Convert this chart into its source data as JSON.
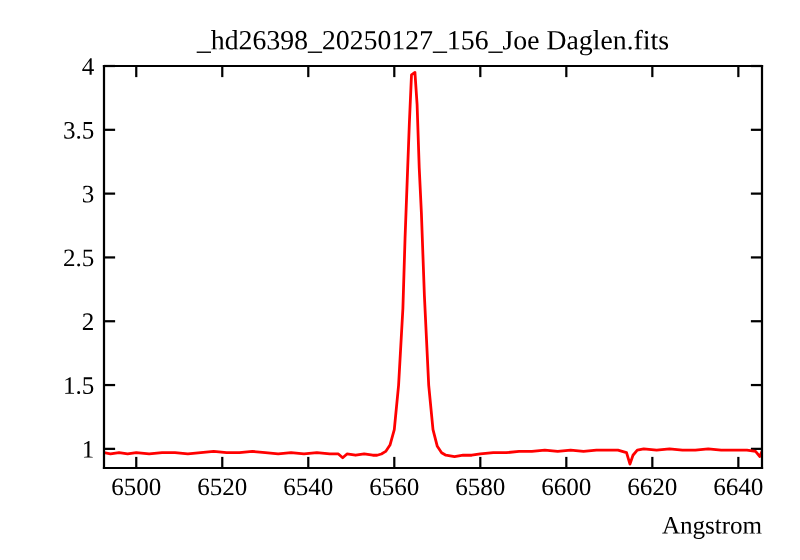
{
  "chart_data": {
    "type": "line",
    "title": "_hd26398_20250127_156_Joe Daglen.fits",
    "xlabel": "Angstrom",
    "xlim": [
      6492.5,
      6645.5
    ],
    "xticks": [
      6500,
      6520,
      6540,
      6560,
      6580,
      6600,
      6620,
      6640
    ],
    "ylim": [
      0.85,
      4
    ],
    "yticks": [
      1,
      1.5,
      2,
      2.5,
      3,
      3.5,
      4
    ],
    "grid": false,
    "legend": false,
    "series": [
      {
        "color": "#ff0000",
        "x": [
          6492.5,
          6494,
          6496,
          6498,
          6500,
          6503,
          6506,
          6509,
          6512,
          6515,
          6518,
          6521,
          6524,
          6527,
          6530,
          6533,
          6536,
          6539,
          6542,
          6545,
          6547,
          6548,
          6549,
          6551,
          6553,
          6555,
          6556,
          6557,
          6558,
          6559,
          6560,
          6561,
          6562,
          6562.5,
          6563,
          6563.5,
          6564,
          6564.8,
          6565.3,
          6565.8,
          6566.3,
          6567,
          6568,
          6569,
          6570,
          6571,
          6572,
          6574,
          6576,
          6578,
          6580,
          6583,
          6586,
          6589,
          6592,
          6595,
          6598,
          6601,
          6604,
          6607,
          6610,
          6612,
          6614,
          6614.8,
          6615.5,
          6616.5,
          6618,
          6621,
          6624,
          6627,
          6630,
          6633,
          6636,
          6639,
          6642,
          6644,
          6645,
          6645.5
        ],
        "values": [
          0.97,
          0.96,
          0.97,
          0.96,
          0.97,
          0.96,
          0.97,
          0.97,
          0.96,
          0.97,
          0.98,
          0.97,
          0.97,
          0.98,
          0.97,
          0.96,
          0.97,
          0.96,
          0.97,
          0.96,
          0.96,
          0.93,
          0.96,
          0.95,
          0.96,
          0.95,
          0.95,
          0.96,
          0.98,
          1.03,
          1.15,
          1.5,
          2.1,
          2.65,
          3.1,
          3.55,
          3.93,
          3.95,
          3.7,
          3.2,
          2.85,
          2.2,
          1.5,
          1.15,
          1.02,
          0.97,
          0.95,
          0.94,
          0.95,
          0.95,
          0.96,
          0.97,
          0.97,
          0.98,
          0.98,
          0.99,
          0.98,
          0.99,
          0.98,
          0.99,
          0.99,
          0.99,
          0.97,
          0.88,
          0.95,
          0.99,
          1.0,
          0.99,
          1.0,
          0.99,
          0.99,
          1.0,
          0.99,
          0.99,
          0.99,
          0.98,
          0.94,
          0.98
        ]
      }
    ]
  }
}
